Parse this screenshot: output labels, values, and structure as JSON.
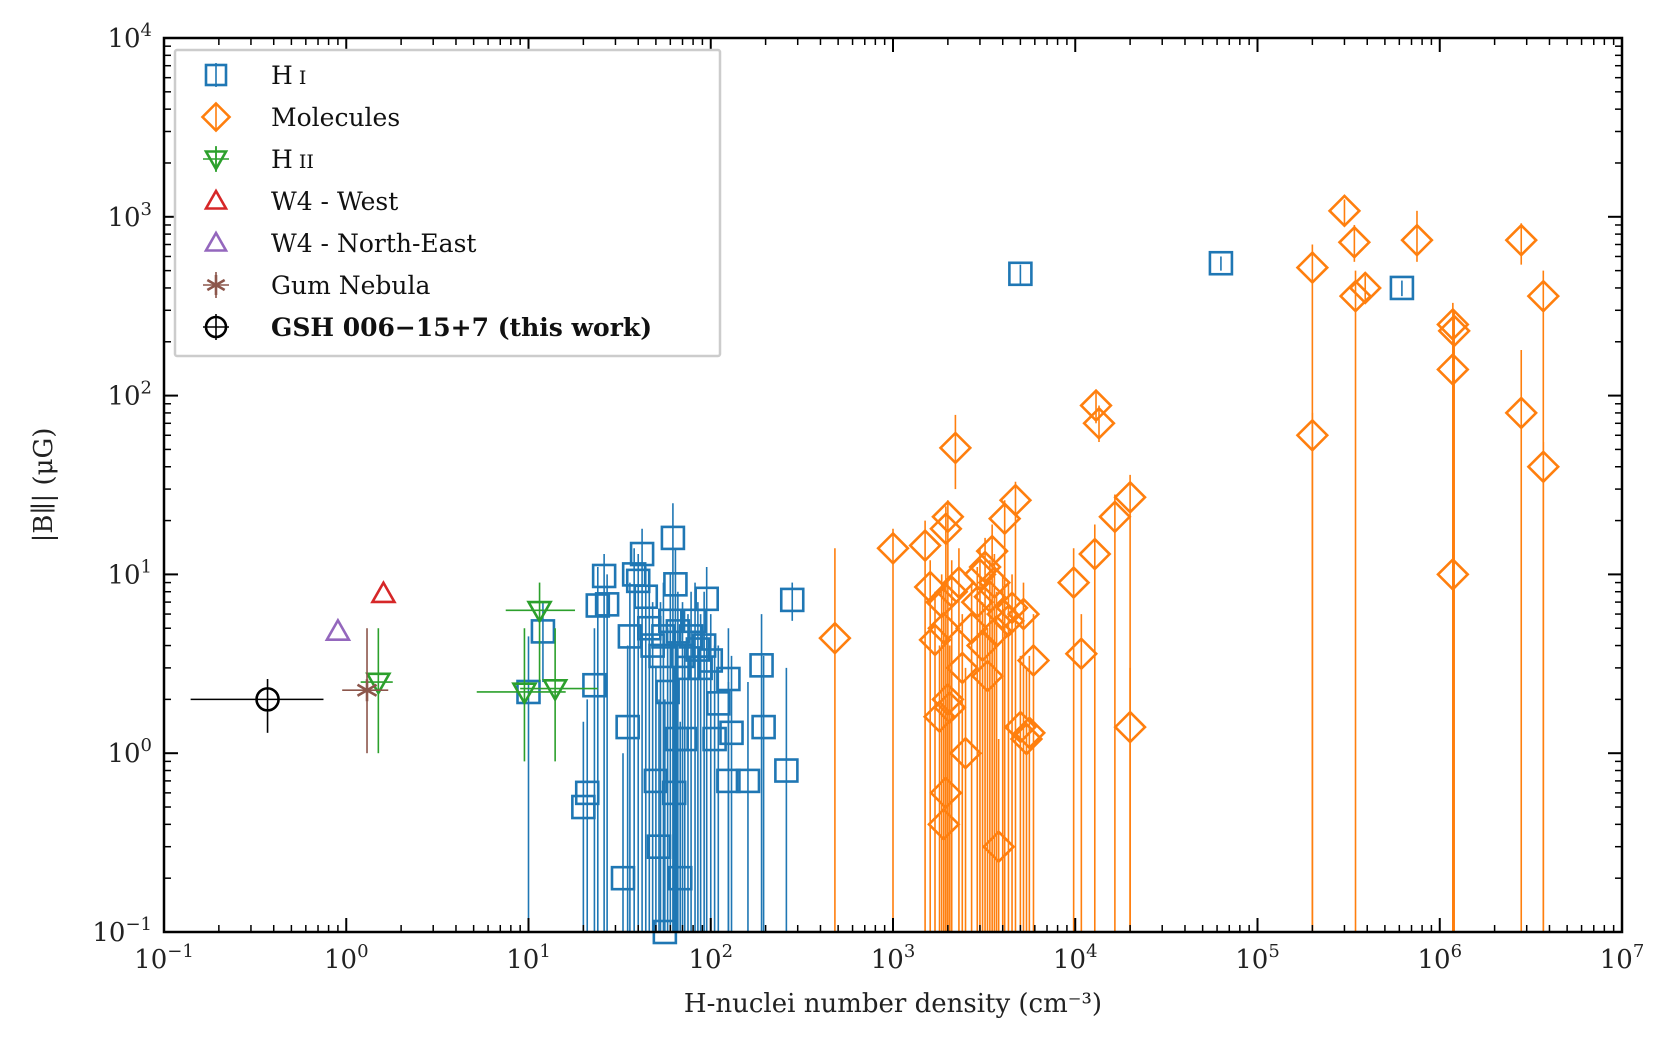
{
  "chart_data": {
    "type": "scatter",
    "xlabel": "H-nuclei number density  (cm⁻³)",
    "ylabel": "|B∥| (μG)",
    "x_scale": "log",
    "y_scale": "log",
    "xlim": [
      0.1,
      10000000
    ],
    "ylim": [
      0.1,
      10000
    ],
    "x_ticks": [
      {
        "value": 0.1,
        "base": "10",
        "exp": "−1"
      },
      {
        "value": 1,
        "base": "10",
        "exp": "0"
      },
      {
        "value": 10,
        "base": "10",
        "exp": "1"
      },
      {
        "value": 100,
        "base": "10",
        "exp": "2"
      },
      {
        "value": 1000,
        "base": "10",
        "exp": "3"
      },
      {
        "value": 10000,
        "base": "10",
        "exp": "4"
      },
      {
        "value": 100000,
        "base": "10",
        "exp": "5"
      },
      {
        "value": 1000000,
        "base": "10",
        "exp": "6"
      },
      {
        "value": 10000000,
        "base": "10",
        "exp": "7"
      }
    ],
    "y_ticks": [
      {
        "value": 0.1,
        "base": "10",
        "exp": "−1"
      },
      {
        "value": 1,
        "base": "10",
        "exp": "0"
      },
      {
        "value": 10,
        "base": "10",
        "exp": "1"
      },
      {
        "value": 100,
        "base": "10",
        "exp": "2"
      },
      {
        "value": 1000,
        "base": "10",
        "exp": "3"
      },
      {
        "value": 10000,
        "base": "10",
        "exp": "4"
      }
    ],
    "grid": false,
    "legend_position": "top-left",
    "series": [
      {
        "name": "H I",
        "label_main": "H",
        "label_suffix": "I",
        "marker": "square",
        "color": "#1f77b4",
        "points": [
          [
            5000,
            480,
            420,
            540
          ],
          [
            63000,
            550,
            500,
            600
          ],
          [
            620000,
            400,
            360,
            440
          ],
          [
            280,
            7.2,
            5.5,
            9
          ],
          [
            12,
            4.8,
            2.5,
            7
          ],
          [
            10,
            2.2,
            0.1,
            4.5
          ],
          [
            20,
            0.5,
            0.1,
            1.5
          ],
          [
            21,
            0.6,
            0.1,
            2
          ],
          [
            23,
            2.4,
            0.1,
            5
          ],
          [
            24,
            6.7,
            0.1,
            11
          ],
          [
            26,
            9.8,
            0.1,
            13
          ],
          [
            27,
            6.8,
            0.1,
            10
          ],
          [
            33,
            0.2,
            0.1,
            1
          ],
          [
            35,
            1.4,
            0.1,
            4
          ],
          [
            36,
            4.5,
            0.1,
            9
          ],
          [
            38,
            10,
            0.1,
            14
          ],
          [
            40,
            9.2,
            0.1,
            13
          ],
          [
            42,
            13,
            0.1,
            18
          ],
          [
            44,
            7.5,
            0.1,
            11
          ],
          [
            46,
            5,
            0.1,
            8
          ],
          [
            48,
            4,
            0.1,
            7
          ],
          [
            50,
            0.7,
            0.1,
            3
          ],
          [
            52,
            0.3,
            0.1,
            2
          ],
          [
            53,
            3.5,
            0.1,
            7
          ],
          [
            55,
            4.5,
            0.1,
            9
          ],
          [
            56,
            0.1,
            0.1,
            2
          ],
          [
            58,
            2.2,
            0.1,
            5
          ],
          [
            60,
            5.5,
            0.1,
            10
          ],
          [
            62,
            16,
            0.1,
            25
          ],
          [
            63,
            0.6,
            0.1,
            3
          ],
          [
            64,
            8.8,
            0.1,
            14
          ],
          [
            65,
            1.2,
            0.1,
            4
          ],
          [
            66,
            4.8,
            0.1,
            8
          ],
          [
            68,
            0.2,
            0.1,
            1.5
          ],
          [
            70,
            3.5,
            0.1,
            7
          ],
          [
            72,
            1.2,
            0.1,
            4
          ],
          [
            75,
            3.0,
            0.1,
            6
          ],
          [
            78,
            4.5,
            0.1,
            8
          ],
          [
            82,
            5.5,
            0.1,
            9
          ],
          [
            85,
            3.8,
            0.1,
            7
          ],
          [
            88,
            3.0,
            0.1,
            6
          ],
          [
            92,
            4.0,
            0.1,
            8
          ],
          [
            95,
            7.3,
            0.1,
            11
          ],
          [
            100,
            3.3,
            0.1,
            6
          ],
          [
            105,
            1.2,
            0.1,
            4
          ],
          [
            110,
            1.9,
            0.1,
            4
          ],
          [
            125,
            2.6,
            0.1,
            5
          ],
          [
            125,
            0.7,
            0.1,
            2.5
          ],
          [
            130,
            1.3,
            0.1,
            3.5
          ],
          [
            160,
            0.7,
            0.1,
            2.5
          ],
          [
            190,
            3.1,
            0.1,
            6
          ],
          [
            195,
            1.4,
            0.1,
            3.5
          ],
          [
            260,
            0.8,
            0.1,
            3
          ]
        ]
      },
      {
        "name": "Molecules",
        "label_main": "Molecules",
        "label_suffix": "",
        "marker": "diamond",
        "color": "#ff7f0e",
        "points": [
          [
            480,
            4.4,
            0.1,
            14
          ],
          [
            1000,
            14,
            0.1,
            18
          ],
          [
            1500,
            14.5,
            0.1,
            20
          ],
          [
            1600,
            8.5,
            0.1,
            12
          ],
          [
            1700,
            4.3,
            0.1,
            8
          ],
          [
            1800,
            1.6,
            0.1,
            4
          ],
          [
            1900,
            0.4,
            0.1,
            1.5
          ],
          [
            1950,
            0.6,
            0.1,
            2
          ],
          [
            2000,
            2.0,
            0.1,
            4
          ],
          [
            1850,
            7.0,
            0.1,
            10
          ],
          [
            1900,
            5.0,
            0.1,
            9
          ],
          [
            1950,
            18,
            0.1,
            24
          ],
          [
            2000,
            21,
            0.1,
            26
          ],
          [
            2050,
            1.8,
            0.1,
            4
          ],
          [
            2100,
            8.0,
            0.1,
            12
          ],
          [
            2200,
            51,
            30,
            78
          ],
          [
            2300,
            9.0,
            0.1,
            14
          ],
          [
            2400,
            3.0,
            0.1,
            6
          ],
          [
            2500,
            1.0,
            0.1,
            3
          ],
          [
            2700,
            5.0,
            0.1,
            9
          ],
          [
            2900,
            7.0,
            0.1,
            11
          ],
          [
            3000,
            10,
            0.1,
            14
          ],
          [
            3100,
            4.0,
            0.1,
            7
          ],
          [
            3200,
            11,
            0.1,
            16
          ],
          [
            3300,
            2.7,
            0.1,
            5
          ],
          [
            3400,
            7.5,
            0.1,
            12
          ],
          [
            3500,
            13.5,
            0.1,
            19
          ],
          [
            3600,
            9.0,
            0.1,
            13
          ],
          [
            3700,
            4.8,
            0.1,
            8
          ],
          [
            3800,
            0.3,
            0.1,
            1.2
          ],
          [
            4000,
            6.0,
            0.1,
            10
          ],
          [
            4100,
            20.5,
            0.1,
            26
          ],
          [
            4300,
            5.5,
            0.1,
            9
          ],
          [
            4500,
            6.5,
            0.1,
            10
          ],
          [
            4700,
            26,
            0.1,
            33
          ],
          [
            5000,
            1.4,
            0.1,
            3.5
          ],
          [
            5200,
            6.0,
            0.1,
            9
          ],
          [
            5400,
            1.2,
            0.1,
            3
          ],
          [
            5600,
            1.3,
            0.1,
            3.5
          ],
          [
            5900,
            3.3,
            0.1,
            6
          ],
          [
            9800,
            9.0,
            0.1,
            14
          ],
          [
            10800,
            3.6,
            0.1,
            6
          ],
          [
            12800,
            13,
            0.1,
            19
          ],
          [
            13000,
            88,
            70,
            108
          ],
          [
            13500,
            70,
            55,
            88
          ],
          [
            16500,
            21,
            0.1,
            28
          ],
          [
            20000,
            27,
            0.1,
            36
          ],
          [
            20000,
            1.4,
            0.1,
            3
          ],
          [
            200000,
            520,
            0.1,
            700
          ],
          [
            200000,
            60,
            0.1,
            80
          ],
          [
            300000,
            1080,
            900,
            1250
          ],
          [
            340000,
            720,
            560,
            900
          ],
          [
            345000,
            360,
            0.1,
            500
          ],
          [
            390000,
            400,
            330,
            470
          ],
          [
            750000,
            740,
            560,
            1080
          ],
          [
            1180000,
            250,
            0.1,
            330
          ],
          [
            1200000,
            230,
            0.1,
            300
          ],
          [
            1180000,
            140,
            0.1,
            200
          ],
          [
            1180000,
            10,
            0.1,
            14
          ],
          [
            2800000,
            740,
            540,
            920
          ],
          [
            2800000,
            80,
            0.1,
            180
          ],
          [
            3700000,
            360,
            0.1,
            500
          ],
          [
            3700000,
            40,
            0.1,
            55
          ]
        ]
      },
      {
        "name": "H II",
        "label_main": "H",
        "label_suffix": "II",
        "marker": "triangle-down",
        "color": "#2ca02c",
        "points": [
          [
            1.5,
            2.5,
            1.0,
            5.0,
            1.2,
            1.8
          ],
          [
            9.5,
            2.2,
            0.9,
            5.0,
            5.2,
            16
          ],
          [
            11.5,
            6.3,
            2.5,
            9.0,
            7.5,
            18
          ],
          [
            14,
            2.3,
            0.9,
            5.0,
            9,
            24
          ]
        ]
      },
      {
        "name": "W4 - West",
        "label_main": "W4 - West",
        "label_suffix": "",
        "marker": "triangle-up",
        "color": "#d62728",
        "points": [
          [
            1.6,
            7.8
          ]
        ]
      },
      {
        "name": "W4 - North-East",
        "label_main": "W4 - North-East",
        "label_suffix": "",
        "marker": "triangle-up",
        "color": "#9467bd",
        "points": [
          [
            0.9,
            4.8
          ]
        ]
      },
      {
        "name": "Gum Nebula",
        "label_main": "Gum Nebula",
        "label_suffix": "",
        "marker": "star",
        "color": "#8c564b",
        "points": [
          [
            1.3,
            2.25,
            1.0,
            5.0,
            0.95,
            1.7
          ]
        ]
      },
      {
        "name": "GSH 006−15+7 (this work)",
        "label_main": "GSH 006−15+7 (this work)",
        "label_suffix": "",
        "bold": true,
        "marker": "circle",
        "color": "#000000",
        "points": [
          [
            0.37,
            2.0,
            1.3,
            2.6,
            0.14,
            0.75
          ]
        ]
      }
    ]
  }
}
